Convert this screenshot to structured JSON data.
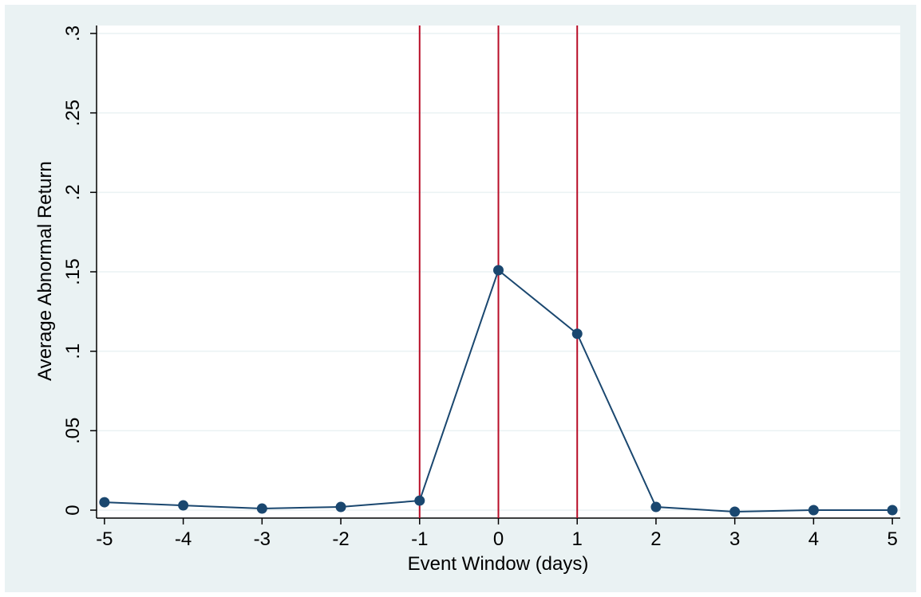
{
  "chart_data": {
    "type": "line",
    "title": "",
    "xlabel": "Event Window (days)",
    "ylabel": "Average Abnormal Return",
    "x": [
      -5,
      -4,
      -3,
      -2,
      -1,
      0,
      1,
      2,
      3,
      4,
      5
    ],
    "series": [
      {
        "values": [
          0.005,
          0.003,
          0.001,
          0.002,
          0.006,
          0.151,
          0.111,
          0.002,
          -0.001,
          0.0,
          0.0
        ]
      }
    ],
    "xlim": [
      -5.1,
      5.1
    ],
    "ylim": [
      -0.005,
      0.305
    ],
    "x_ticks": [
      {
        "value": -5,
        "label": "-5"
      },
      {
        "value": -4,
        "label": "-4"
      },
      {
        "value": -3,
        "label": "-3"
      },
      {
        "value": -2,
        "label": "-2"
      },
      {
        "value": -1,
        "label": "-1"
      },
      {
        "value": 0,
        "label": "0"
      },
      {
        "value": 1,
        "label": "1"
      },
      {
        "value": 2,
        "label": "2"
      },
      {
        "value": 3,
        "label": "3"
      },
      {
        "value": 4,
        "label": "4"
      },
      {
        "value": 5,
        "label": "5"
      }
    ],
    "y_ticks": [
      {
        "value": 0,
        "label": "0"
      },
      {
        "value": 0.05,
        "label": ".05"
      },
      {
        "value": 0.1,
        "label": ".1"
      },
      {
        "value": 0.15,
        "label": ".15"
      },
      {
        "value": 0.2,
        "label": ".2"
      },
      {
        "value": 0.25,
        "label": ".25"
      },
      {
        "value": 0.3,
        "label": ".3"
      }
    ],
    "vertical_lines": [
      -1,
      0,
      1
    ],
    "grid": true,
    "legend": "none",
    "colors": {
      "outer_background": "#eaf2f3",
      "plot_background": "#ffffff",
      "grid": "#eaf2f3",
      "line": "#1a476f",
      "marker": "#1a476f",
      "reference_lines": "#b80d27",
      "axis": "#000000"
    }
  }
}
